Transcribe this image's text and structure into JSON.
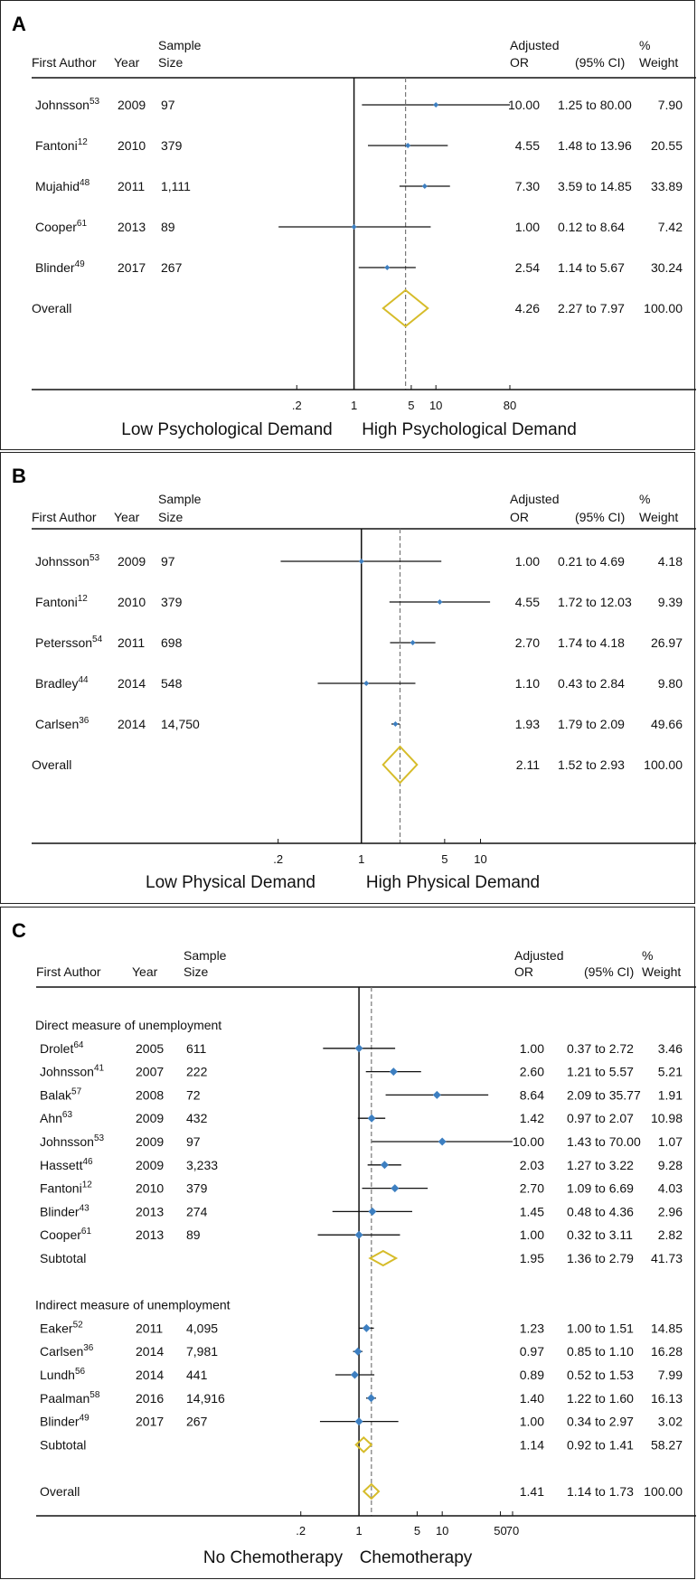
{
  "colors": {
    "point": "#3d7fc1",
    "diamond": "#d6bc2a",
    "line": "#111111",
    "dashed": "#777777"
  },
  "headers": {
    "first_author": "First Author",
    "year": "Year",
    "sample_1": "Sample",
    "sample_2": "Size",
    "adjusted": "Adjusted",
    "or": "OR",
    "ci": "(95% CI)",
    "pct": "%",
    "weight": "Weight"
  },
  "chart_data": [
    {
      "type": "forest",
      "panel_label": "A",
      "scale": "log",
      "xlim": [
        0.1,
        80
      ],
      "xticks": [
        ".2",
        "1",
        "5",
        "10",
        "80"
      ],
      "xtick_values": [
        0.2,
        1,
        5,
        10,
        80
      ],
      "reference": 1,
      "pooled_line": 4.26,
      "axis_left_label": "Low Psychological Demand",
      "axis_right_label": "High Psychological Demand",
      "rows": [
        {
          "kind": "study",
          "author": "Johnsson",
          "ref": "53",
          "year": "2009",
          "n": "97",
          "or": 10.0,
          "lo": 1.25,
          "hi": 80.0,
          "or_text": "10.00",
          "ci_text": "1.25 to 80.00",
          "weight_text": "7.90"
        },
        {
          "kind": "study",
          "author": "Fantoni",
          "ref": "12",
          "year": "2010",
          "n": "379",
          "or": 4.55,
          "lo": 1.48,
          "hi": 13.96,
          "or_text": "4.55",
          "ci_text": "1.48 to 13.96",
          "weight_text": "20.55"
        },
        {
          "kind": "study",
          "author": "Mujahid",
          "ref": "48",
          "year": "2011",
          "n": "1,111",
          "or": 7.3,
          "lo": 3.59,
          "hi": 14.85,
          "or_text": "7.30",
          "ci_text": "3.59 to 14.85",
          "weight_text": "33.89"
        },
        {
          "kind": "study",
          "author": "Cooper",
          "ref": "61",
          "year": "2013",
          "n": "89",
          "or": 1.0,
          "lo": 0.12,
          "hi": 8.64,
          "or_text": "1.00",
          "ci_text": "0.12 to 8.64",
          "weight_text": "7.42"
        },
        {
          "kind": "study",
          "author": "Blinder",
          "ref": "49",
          "year": "2017",
          "n": "267",
          "or": 2.54,
          "lo": 1.14,
          "hi": 5.67,
          "or_text": "2.54",
          "ci_text": "1.14 to 5.67",
          "weight_text": "30.24"
        },
        {
          "kind": "pooled",
          "author": "Overall",
          "or": 4.26,
          "lo": 2.27,
          "hi": 7.97,
          "or_text": "4.26",
          "ci_text": "2.27 to 7.97",
          "weight_text": "100.00"
        }
      ]
    },
    {
      "type": "forest",
      "panel_label": "B",
      "scale": "log",
      "xlim": [
        0.1,
        14.3
      ],
      "xticks": [
        ".2",
        "1",
        "5",
        "10"
      ],
      "xtick_values": [
        0.2,
        1,
        5,
        10
      ],
      "reference": 1,
      "pooled_line": 2.11,
      "axis_left_label": "Low Physical Demand",
      "axis_right_label": "High Physical Demand",
      "rows": [
        {
          "kind": "study",
          "author": "Johnsson",
          "ref": "53",
          "year": "2009",
          "n": "97",
          "or": 1.0,
          "lo": 0.21,
          "hi": 4.69,
          "or_text": "1.00",
          "ci_text": "0.21 to 4.69",
          "weight_text": "4.18"
        },
        {
          "kind": "study",
          "author": "Fantoni",
          "ref": "12",
          "year": "2010",
          "n": "379",
          "or": 4.55,
          "lo": 1.72,
          "hi": 12.03,
          "or_text": "4.55",
          "ci_text": "1.72 to 12.03",
          "weight_text": "9.39"
        },
        {
          "kind": "study",
          "author": "Petersson",
          "ref": "54",
          "year": "2011",
          "n": "698",
          "or": 2.7,
          "lo": 1.74,
          "hi": 4.18,
          "or_text": "2.70",
          "ci_text": "1.74 to 4.18",
          "weight_text": "26.97"
        },
        {
          "kind": "study",
          "author": "Bradley",
          "ref": "44",
          "year": "2014",
          "n": "548",
          "or": 1.1,
          "lo": 0.43,
          "hi": 2.84,
          "or_text": "1.10",
          "ci_text": "0.43 to 2.84",
          "weight_text": "9.80"
        },
        {
          "kind": "study",
          "author": "Carlsen",
          "ref": "36",
          "year": "2014",
          "n": "14,750",
          "or": 1.93,
          "lo": 1.79,
          "hi": 2.09,
          "or_text": "1.93",
          "ci_text": "1.79 to 2.09",
          "weight_text": "49.66"
        },
        {
          "kind": "pooled",
          "author": "Overall",
          "or": 2.11,
          "lo": 1.52,
          "hi": 2.93,
          "or_text": "2.11",
          "ci_text": "1.52 to 2.93",
          "weight_text": "100.00"
        }
      ]
    },
    {
      "type": "forest",
      "panel_label": "C",
      "scale": "log",
      "xlim": [
        0.1,
        70
      ],
      "xticks": [
        ".2",
        "1",
        "5",
        "10",
        "50",
        "70"
      ],
      "xtick_values": [
        0.2,
        1,
        5,
        10,
        50,
        70
      ],
      "reference": 1,
      "pooled_line": 1.41,
      "axis_left_label": "No Chemotherapy",
      "axis_right_label": "Chemotherapy",
      "rows": [
        {
          "kind": "group",
          "author": "Direct measure of unemployment"
        },
        {
          "kind": "study",
          "author": "Drolet",
          "ref": "64",
          "year": "2005",
          "n": "611",
          "or": 1.0,
          "lo": 0.37,
          "hi": 2.72,
          "or_text": "1.00",
          "ci_text": "0.37 to 2.72",
          "weight_text": "3.46"
        },
        {
          "kind": "study",
          "author": "Johnsson",
          "ref": "41",
          "year": "2007",
          "n": "222",
          "or": 2.6,
          "lo": 1.21,
          "hi": 5.57,
          "or_text": "2.60",
          "ci_text": "1.21 to 5.57",
          "weight_text": "5.21"
        },
        {
          "kind": "study",
          "author": "Balak",
          "ref": "57",
          "year": "2008",
          "n": "72",
          "or": 8.64,
          "lo": 2.09,
          "hi": 35.77,
          "or_text": "8.64",
          "ci_text": "2.09 to 35.77",
          "weight_text": "1.91"
        },
        {
          "kind": "study",
          "author": "Ahn",
          "ref": "63",
          "year": "2009",
          "n": "432",
          "or": 1.42,
          "lo": 0.97,
          "hi": 2.07,
          "or_text": "1.42",
          "ci_text": "0.97 to 2.07",
          "weight_text": "10.98"
        },
        {
          "kind": "study",
          "author": "Johnsson",
          "ref": "53",
          "year": "2009",
          "n": "97",
          "or": 10.0,
          "lo": 1.43,
          "hi": 70.0,
          "or_text": "10.00",
          "ci_text": "1.43 to 70.00",
          "weight_text": "1.07"
        },
        {
          "kind": "study",
          "author": "Hassett",
          "ref": "46",
          "year": "2009",
          "n": "3,233",
          "or": 2.03,
          "lo": 1.27,
          "hi": 3.22,
          "or_text": "2.03",
          "ci_text": "1.27 to 3.22",
          "weight_text": "9.28"
        },
        {
          "kind": "study",
          "author": "Fantoni",
          "ref": "12",
          "year": "2010",
          "n": "379",
          "or": 2.7,
          "lo": 1.09,
          "hi": 6.69,
          "or_text": "2.70",
          "ci_text": "1.09 to 6.69",
          "weight_text": "4.03"
        },
        {
          "kind": "study",
          "author": "Blinder",
          "ref": "43",
          "year": "2013",
          "n": "274",
          "or": 1.45,
          "lo": 0.48,
          "hi": 4.36,
          "or_text": "1.45",
          "ci_text": "0.48 to 4.36",
          "weight_text": "2.96"
        },
        {
          "kind": "study",
          "author": "Cooper",
          "ref": "61",
          "year": "2013",
          "n": "89",
          "or": 1.0,
          "lo": 0.32,
          "hi": 3.11,
          "or_text": "1.00",
          "ci_text": "0.32 to 3.11",
          "weight_text": "2.82"
        },
        {
          "kind": "pooled",
          "author": "Subtotal",
          "or": 1.95,
          "lo": 1.36,
          "hi": 2.79,
          "or_text": "1.95",
          "ci_text": "1.36 to 2.79",
          "weight_text": "41.73"
        },
        {
          "kind": "spacer"
        },
        {
          "kind": "group",
          "author": "Indirect measure of unemployment"
        },
        {
          "kind": "study",
          "author": "Eaker",
          "ref": "52",
          "year": "2011",
          "n": "4,095",
          "or": 1.23,
          "lo": 1.0,
          "hi": 1.51,
          "or_text": "1.23",
          "ci_text": "1.00 to 1.51",
          "weight_text": "14.85"
        },
        {
          "kind": "study",
          "author": "Carlsen",
          "ref": "36",
          "year": "2014",
          "n": "7,981",
          "or": 0.97,
          "lo": 0.85,
          "hi": 1.1,
          "or_text": "0.97",
          "ci_text": "0.85 to 1.10",
          "weight_text": "16.28"
        },
        {
          "kind": "study",
          "author": "Lundh",
          "ref": "56",
          "year": "2014",
          "n": "441",
          "or": 0.89,
          "lo": 0.52,
          "hi": 1.53,
          "or_text": "0.89",
          "ci_text": "0.52 to 1.53",
          "weight_text": "7.99"
        },
        {
          "kind": "study",
          "author": "Paalman",
          "ref": "58",
          "year": "2016",
          "n": "14,916",
          "or": 1.4,
          "lo": 1.22,
          "hi": 1.6,
          "or_text": "1.40",
          "ci_text": "1.22 to 1.60",
          "weight_text": "16.13"
        },
        {
          "kind": "study",
          "author": "Blinder",
          "ref": "49",
          "year": "2017",
          "n": "267",
          "or": 1.0,
          "lo": 0.34,
          "hi": 2.97,
          "or_text": "1.00",
          "ci_text": "0.34 to 2.97",
          "weight_text": "3.02"
        },
        {
          "kind": "pooled",
          "author": "Subtotal",
          "or": 1.14,
          "lo": 0.92,
          "hi": 1.41,
          "or_text": "1.14",
          "ci_text": "0.92 to 1.41",
          "weight_text": "58.27"
        },
        {
          "kind": "spacer"
        },
        {
          "kind": "pooled",
          "author": "Overall",
          "or": 1.41,
          "lo": 1.14,
          "hi": 1.73,
          "or_text": "1.41",
          "ci_text": "1.14 to 1.73",
          "weight_text": "100.00"
        }
      ]
    }
  ]
}
